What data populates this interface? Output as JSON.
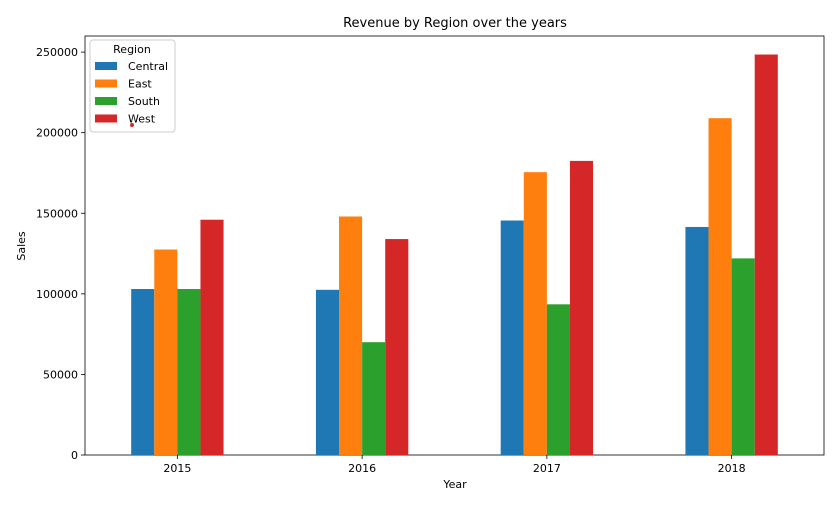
{
  "chart_data": {
    "type": "bar",
    "title": "Revenue by Region over the years",
    "xlabel": "Year",
    "ylabel": "Sales",
    "categories": [
      "2015",
      "2016",
      "2017",
      "2018"
    ],
    "ylim": [
      0,
      260000
    ],
    "yticks": [
      0,
      50000,
      100000,
      150000,
      200000,
      250000
    ],
    "legend": {
      "title": "Region",
      "placement": "top-left"
    },
    "series": [
      {
        "name": "Central",
        "color": "#1f77b4",
        "values": [
          103000,
          102500,
          145500,
          141500
        ]
      },
      {
        "name": "East",
        "color": "#ff7f0e",
        "values": [
          127500,
          148000,
          175500,
          209000
        ]
      },
      {
        "name": "South",
        "color": "#2ca02c",
        "values": [
          103000,
          70000,
          93500,
          122000
        ]
      },
      {
        "name": "West",
        "color": "#d62728",
        "values": [
          146000,
          134000,
          182500,
          248500
        ]
      }
    ]
  }
}
